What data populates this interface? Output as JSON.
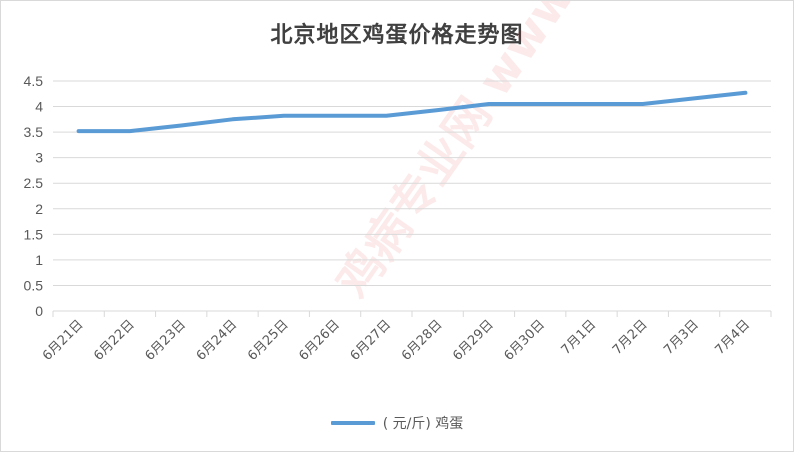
{
  "chart_data": {
    "type": "line",
    "title": "北京地区鸡蛋价格走势图",
    "categories": [
      "6月21日",
      "6月22日",
      "6月23日",
      "6月24日",
      "6月25日",
      "6月26日",
      "6月27日",
      "6月28日",
      "6月29日",
      "6月30日",
      "7月1日",
      "7月2日",
      "7月3日",
      "7月4日"
    ],
    "series": [
      {
        "name": "( 元/斤) 鸡蛋",
        "values": [
          3.52,
          3.52,
          3.63,
          3.75,
          3.82,
          3.82,
          3.82,
          3.93,
          4.05,
          4.05,
          4.05,
          4.05,
          4.16,
          4.27
        ]
      }
    ],
    "yticks": [
      "0",
      "0.5",
      "1",
      "1.5",
      "2",
      "2.5",
      "3",
      "3.5",
      "4",
      "4.5"
    ],
    "ylim": [
      0,
      4.5
    ],
    "grid": true,
    "legend_position": "bottom",
    "line_color": "#5b9bd5",
    "grid_color": "#d9d9d9",
    "watermark": "鸡病专业网 www.jbzyw.com"
  }
}
